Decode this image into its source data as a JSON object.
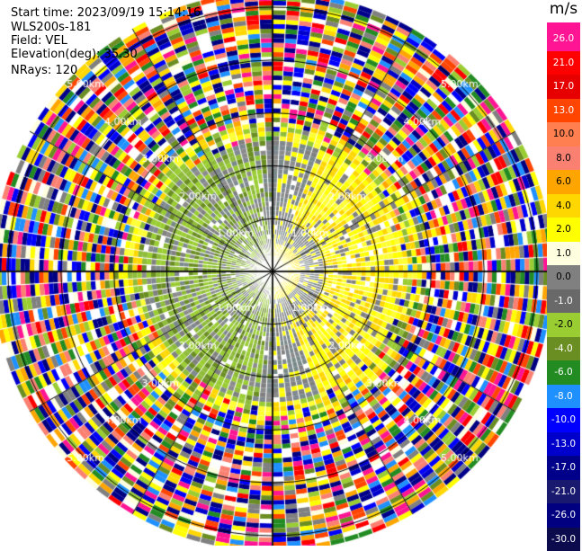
{
  "header": {
    "start_time": "Start time: 2023/09/19 15:14:16",
    "site": "WLS200s-181",
    "field": "Field: VEL",
    "elevation": "Elevation(deg): 35.30",
    "nrays": "NRays: 120"
  },
  "chart_data": {
    "type": "ppi-polar-heatmap",
    "field": "VEL",
    "unit": "m/s",
    "rays": 120,
    "range_rings_km": [
      1.0,
      2.0,
      3.0,
      4.0,
      5.0
    ],
    "ring_label_texts": [
      "1.00km",
      "2.00km",
      "3.00km",
      "4.00km",
      "5.00km"
    ],
    "max_range_km": 5.3,
    "spokes_deg": [
      0,
      30,
      60,
      90,
      120,
      150,
      180,
      210,
      240,
      270,
      300,
      330
    ],
    "colorbar": {
      "label_values": [
        "26.0",
        "21.0",
        "17.0",
        "13.0",
        "10.0",
        "8.0",
        "6.0",
        "4.0",
        "2.0",
        "1.0",
        "0.0",
        "-1.0",
        "-2.0",
        "-4.0",
        "-6.0",
        "-8.0",
        "-10.0",
        "-13.0",
        "-17.0",
        "-21.0",
        "-26.0",
        "-30.0"
      ],
      "colors": [
        "#ff1493",
        "#ff0000",
        "#e60000",
        "#ff4500",
        "#ff7f50",
        "#fa8072",
        "#ffa500",
        "#ffd700",
        "#ffff00",
        "#ffffe0",
        "#808080",
        "#696969",
        "#9acd32",
        "#6b8e23",
        "#228b22",
        "#1e90ff",
        "#0000ff",
        "#0000cd",
        "#00008b",
        "#191970",
        "#000080",
        "#0b0b4d"
      ],
      "top_color": "#ff1493"
    }
  }
}
